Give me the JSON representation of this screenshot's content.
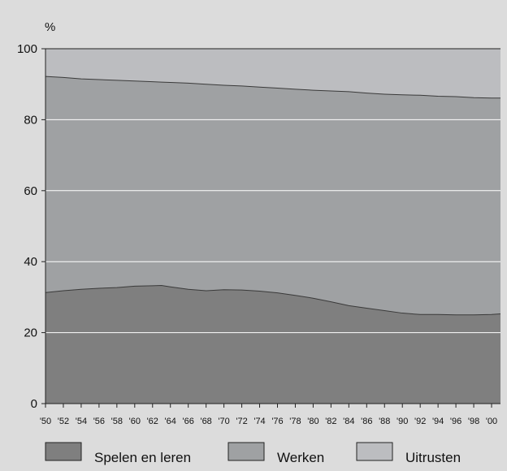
{
  "chart_data": {
    "type": "area",
    "stacked": true,
    "ylabel": "%",
    "ylim": [
      0,
      100
    ],
    "yticks": [
      0,
      20,
      40,
      60,
      80,
      100
    ],
    "xlim": [
      1950,
      2001
    ],
    "xticks": [
      1950,
      1952,
      1954,
      1956,
      1958,
      1960,
      1962,
      1964,
      1966,
      1968,
      1970,
      1972,
      1974,
      1976,
      1978,
      1980,
      1982,
      1984,
      1986,
      1988,
      1990,
      1992,
      1994,
      1996,
      1998,
      2000
    ],
    "xtick_labels": [
      "'50",
      "'52",
      "'54",
      "'56",
      "'58",
      "'60",
      "'62",
      "'64",
      "'66",
      "'68",
      "'70",
      "'72",
      "'74",
      "'76",
      "'78",
      "'80",
      "'82",
      "'84",
      "'86",
      "'88",
      "'90",
      "'92",
      "'94",
      "'96",
      "'98",
      "'00"
    ],
    "grid": "horizontal",
    "legend_position": "bottom",
    "x": [
      1950,
      1952,
      1954,
      1956,
      1958,
      1960,
      1962,
      1963,
      1964,
      1966,
      1968,
      1970,
      1972,
      1974,
      1976,
      1978,
      1980,
      1982,
      1984,
      1986,
      1988,
      1990,
      1992,
      1994,
      1996,
      1998,
      2000,
      2001
    ],
    "series": [
      {
        "name": "Spelen en leren",
        "color": "#7f7f7f",
        "values": [
          31.3,
          31.8,
          32.2,
          32.5,
          32.7,
          33.1,
          33.2,
          33.3,
          32.9,
          32.2,
          31.8,
          32.1,
          32.0,
          31.7,
          31.2,
          30.5,
          29.7,
          28.7,
          27.6,
          26.9,
          26.2,
          25.5,
          25.1,
          25.1,
          25.0,
          25.0,
          25.1,
          25.3
        ]
      },
      {
        "name": "Werken",
        "color": "#9fa1a3",
        "values": [
          60.9,
          60.1,
          59.3,
          58.8,
          58.4,
          57.8,
          57.5,
          57.3,
          57.6,
          58.1,
          58.2,
          57.6,
          57.5,
          57.5,
          57.7,
          58.1,
          58.6,
          59.4,
          60.3,
          60.6,
          61.0,
          61.5,
          61.8,
          61.5,
          61.5,
          61.2,
          61.0,
          60.8
        ]
      },
      {
        "name": "Uitrusten",
        "color": "#bcbdc0",
        "values": [
          7.8,
          8.1,
          8.5,
          8.7,
          8.9,
          9.1,
          9.3,
          9.4,
          9.5,
          9.7,
          10.0,
          10.3,
          10.5,
          10.8,
          11.1,
          11.4,
          11.7,
          11.9,
          12.1,
          12.5,
          12.8,
          13.0,
          13.1,
          13.4,
          13.5,
          13.8,
          13.9,
          13.9
        ]
      }
    ]
  }
}
